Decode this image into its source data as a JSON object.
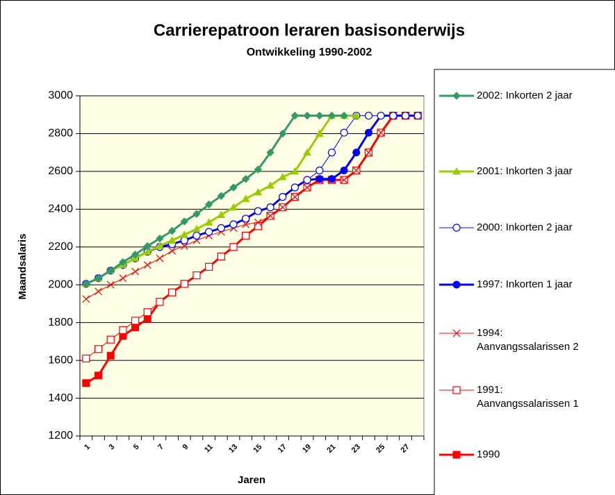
{
  "chart_data": {
    "type": "line",
    "title": "Carrierepatroon leraren basisonderwijs",
    "subtitle": "Ontwikkeling 1990-2002",
    "x_label": "Jaren",
    "y_label": "Maandsalaris",
    "categories": [
      "1",
      null,
      "3",
      null,
      "5",
      null,
      "7",
      null,
      "9",
      null,
      "11",
      null,
      "13",
      null,
      "15",
      null,
      "17",
      null,
      "19",
      null,
      "21",
      null,
      "23",
      null,
      "25",
      null,
      "27",
      null
    ],
    "ylim": [
      1200,
      3000
    ],
    "yticks": [
      1200,
      1400,
      1600,
      1800,
      2000,
      2200,
      2400,
      2600,
      2800,
      3000
    ],
    "grid": true,
    "legend": "right",
    "series": [
      {
        "name": "2002: Inkorten 2 jaar",
        "color": "#339966",
        "marker": "diamond",
        "width": 3,
        "values": [
          2005,
          2035,
          2075,
          2120,
          2160,
          2205,
          2245,
          2285,
          2335,
          2375,
          2425,
          2470,
          2515,
          2560,
          2610,
          2700,
          2800,
          2895,
          2895,
          2895,
          2895,
          2895,
          null,
          null,
          null,
          null,
          null,
          null
        ]
      },
      {
        "name": "2001: Inkorten 3 jaar",
        "color": "#99cc00",
        "marker": "triangle",
        "width": 3,
        "values": [
          2005,
          2035,
          2075,
          2105,
          2140,
          2175,
          2205,
          2235,
          2265,
          2295,
          2330,
          2370,
          2410,
          2455,
          2490,
          2525,
          2570,
          2600,
          2700,
          2800,
          2895,
          2895,
          2895,
          null,
          null,
          null,
          null,
          null
        ]
      },
      {
        "name": "2000: Inkorten 2 jaar",
        "color": "#0000ff",
        "marker": "circle-open",
        "width": 1,
        "values": [
          2005,
          2035,
          2075,
          2105,
          2140,
          2175,
          2200,
          2215,
          2235,
          2260,
          2280,
          2300,
          2320,
          2350,
          2390,
          2410,
          2465,
          2515,
          2555,
          2605,
          2700,
          2805,
          2895,
          2895,
          2895,
          2895,
          2895,
          2895
        ]
      },
      {
        "name": "1997: Inkorten 1 jaar",
        "color": "#0000ff",
        "marker": "circle",
        "width": 3,
        "values": [
          2005,
          2035,
          2075,
          2105,
          2140,
          2175,
          2200,
          2215,
          2235,
          2260,
          2280,
          2300,
          2320,
          2350,
          2390,
          2410,
          2465,
          2515,
          2555,
          2560,
          2560,
          2605,
          2700,
          2805,
          2895,
          2895,
          2895,
          2895
        ]
      },
      {
        "name": "1994: Aanvangssalarissen 2",
        "color": "#ff0000",
        "marker": "x",
        "width": 1,
        "values": [
          1925,
          1965,
          2000,
          2035,
          2070,
          2105,
          2140,
          2180,
          2205,
          2235,
          2260,
          2280,
          2300,
          2320,
          2330,
          2365,
          2410,
          2465,
          2515,
          2555,
          2555,
          2555,
          2605,
          2700,
          2805,
          2895,
          2895,
          2895
        ]
      },
      {
        "name": "1991: Aanvangssalarissen 1",
        "color": "#ff0000",
        "marker": "square-open",
        "width": 1,
        "values": [
          1610,
          1660,
          1710,
          1760,
          1810,
          1855,
          1910,
          1960,
          2005,
          2050,
          2095,
          2150,
          2200,
          2260,
          2310,
          2365,
          2410,
          2465,
          2515,
          2555,
          2555,
          2555,
          2605,
          2700,
          2805,
          2895,
          2895,
          2895
        ]
      },
      {
        "name": "1990",
        "color": "#ff0000",
        "marker": "square",
        "width": 3,
        "values": [
          1480,
          1520,
          1625,
          1730,
          1775,
          1820,
          1910,
          1960,
          2005,
          2050,
          2095,
          2150,
          2200,
          2260,
          2310,
          2365,
          2410,
          2465,
          2515,
          2555,
          2555,
          2555,
          2605,
          2700,
          2805,
          2895,
          2895,
          2895
        ]
      }
    ]
  }
}
